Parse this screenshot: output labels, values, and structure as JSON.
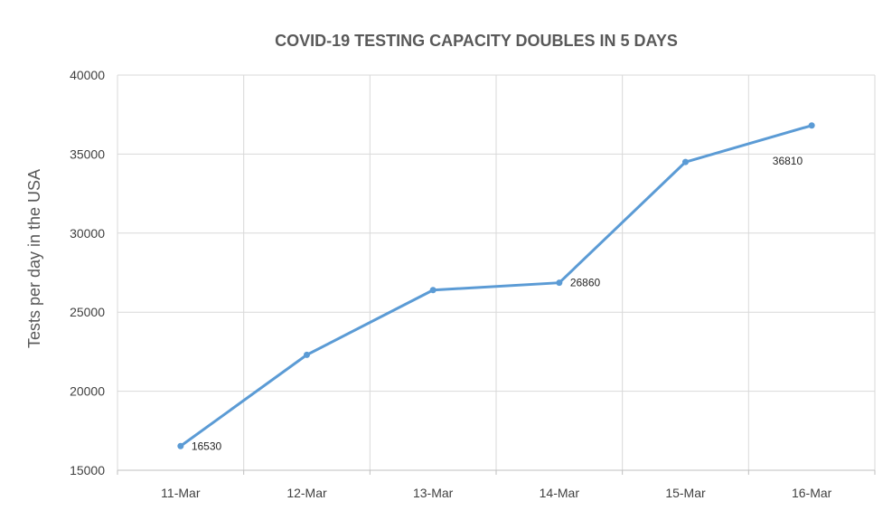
{
  "chart_data": {
    "type": "line",
    "title": "COVID-19 TESTING CAPACITY DOUBLES IN 5 DAYS",
    "xlabel": "",
    "ylabel": "Tests per day in the USA",
    "categories": [
      "11-Mar",
      "12-Mar",
      "13-Mar",
      "14-Mar",
      "15-Mar",
      "16-Mar"
    ],
    "series": [
      {
        "values": [
          16530,
          22300,
          26400,
          26860,
          34500,
          36810
        ],
        "color": "#5b9bd5"
      }
    ],
    "data_labels": [
      {
        "index": 0,
        "text": "16530"
      },
      {
        "index": 3,
        "text": "26860"
      },
      {
        "index": 5,
        "text": "36810"
      }
    ],
    "ylim": [
      15000,
      40000
    ],
    "y_ticks": [
      15000,
      20000,
      25000,
      30000,
      35000,
      40000
    ],
    "y_tick_labels": [
      "15000",
      "20000",
      "25000",
      "30000",
      "35000",
      "40000"
    ],
    "grid": true,
    "legend": "none"
  }
}
